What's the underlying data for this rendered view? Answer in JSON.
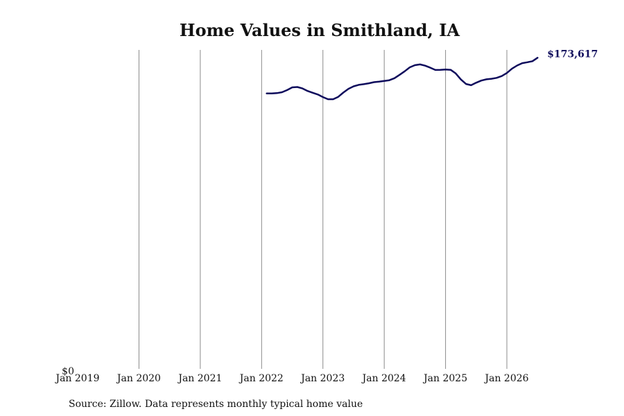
{
  "chart_data": {
    "type": "line",
    "title": "Home Values in Smithland, IA",
    "source": "Source: Zillow. Data represents monthly typical home value",
    "line_color": "#0d0a5c",
    "grid": "vertical",
    "xlim": [
      "2019-01",
      "2026-09"
    ],
    "ylim": [
      0,
      178000
    ],
    "x_ticks": [
      {
        "date": "2019-01",
        "label": "Jan 2019"
      },
      {
        "date": "2020-01",
        "label": "Jan 2020"
      },
      {
        "date": "2021-01",
        "label": "Jan 2021"
      },
      {
        "date": "2022-01",
        "label": "Jan 2022"
      },
      {
        "date": "2023-01",
        "label": "Jan 2023"
      },
      {
        "date": "2024-01",
        "label": "Jan 2024"
      },
      {
        "date": "2025-01",
        "label": "Jan 2025"
      },
      {
        "date": "2026-01",
        "label": "Jan 2026"
      }
    ],
    "y_ticks": [
      {
        "value": 0,
        "label": "$0"
      }
    ],
    "end_label": "$173,617",
    "series": [
      {
        "x": [
          "2022-02",
          "2022-03",
          "2022-04",
          "2022-05",
          "2022-06",
          "2022-07",
          "2022-08",
          "2022-09",
          "2022-10",
          "2022-11",
          "2022-12",
          "2023-01",
          "2023-02",
          "2023-03",
          "2023-04",
          "2023-05",
          "2023-06",
          "2023-07",
          "2023-08",
          "2023-09",
          "2023-10",
          "2023-11",
          "2023-12",
          "2024-01",
          "2024-02",
          "2024-03",
          "2024-04",
          "2024-05",
          "2024-06",
          "2024-07",
          "2024-08",
          "2024-09",
          "2024-10",
          "2024-11",
          "2024-12",
          "2025-01",
          "2025-02",
          "2025-03",
          "2025-04",
          "2025-05",
          "2025-06",
          "2025-07",
          "2025-08",
          "2025-09",
          "2025-10",
          "2025-11",
          "2025-12",
          "2026-01",
          "2026-02",
          "2026-03",
          "2026-04",
          "2026-05",
          "2026-06",
          "2026-07"
        ],
        "values": [
          153700,
          153700,
          153900,
          154400,
          155600,
          157100,
          157300,
          156500,
          155100,
          154100,
          153100,
          151700,
          150500,
          150500,
          151800,
          154200,
          156300,
          157700,
          158500,
          158900,
          159400,
          160000,
          160300,
          160700,
          161100,
          162200,
          164100,
          166100,
          168300,
          169500,
          169900,
          169200,
          168100,
          166800,
          166900,
          167100,
          166900,
          164900,
          161500,
          159000,
          158300,
          159700,
          160900,
          161600,
          161900,
          162400,
          163400,
          165100,
          167500,
          169300,
          170600,
          171100,
          171700,
          173617
        ]
      }
    ]
  }
}
